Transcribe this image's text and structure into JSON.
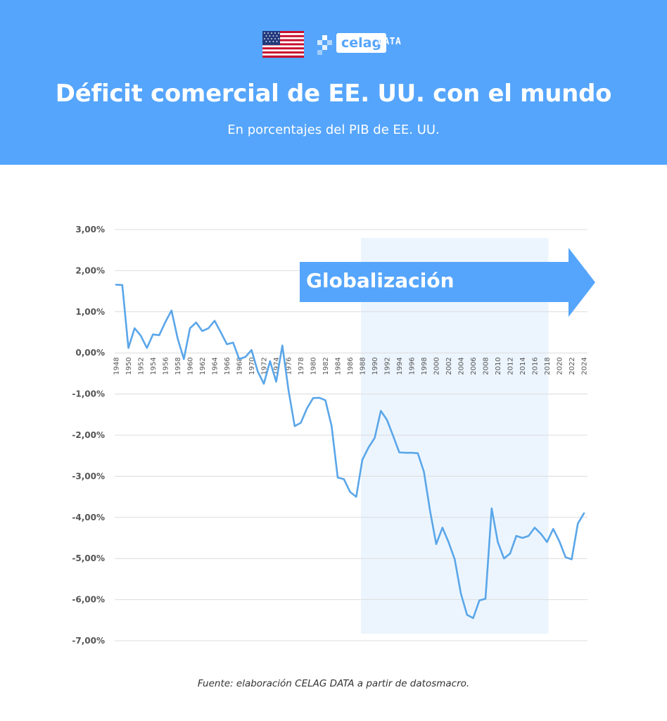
{
  "header": {
    "title": "Déficit comercial de EE. UU. con el mundo",
    "subtitle": "En porcentajes del PIB de EE. UU.",
    "logo_word": "celag",
    "logo_suffix": "DATA",
    "flag_icon": "us-flag-icon"
  },
  "colors": {
    "header_bg": "#55a5fc",
    "line": "#5aa6e9",
    "band": "#ecf5fe",
    "arrow": "#55a5fc"
  },
  "chart_data": {
    "type": "line",
    "title": "Déficit comercial de EE. UU. con el mundo",
    "subtitle": "En porcentajes del PIB de EE. UU.",
    "xlabel": "",
    "ylabel": "",
    "ylim": [
      -7,
      3
    ],
    "xlim": [
      1948,
      2024
    ],
    "grid": true,
    "y_ticks": [
      {
        "value": 3,
        "label": "3,00%"
      },
      {
        "value": 2,
        "label": "2,00%"
      },
      {
        "value": 1,
        "label": "1,00%"
      },
      {
        "value": 0,
        "label": "0,00%"
      },
      {
        "value": -1,
        "label": "-1,00%"
      },
      {
        "value": -2,
        "label": "-2,00%"
      },
      {
        "value": -3,
        "label": "-3,00%"
      },
      {
        "value": -4,
        "label": "-4,00%"
      },
      {
        "value": -5,
        "label": "-5,00%"
      },
      {
        "value": -6,
        "label": "-6,00%"
      },
      {
        "value": -7,
        "label": "-7,00%"
      }
    ],
    "x_ticks": [
      "1948",
      "1950",
      "1952",
      "1954",
      "1956",
      "1958",
      "1960",
      "1962",
      "1964",
      "1966",
      "1968",
      "1970",
      "1972",
      "1974",
      "1976",
      "1978",
      "1980",
      "1982",
      "1984",
      "1986",
      "1988",
      "1990",
      "1992",
      "1994",
      "1996",
      "1998",
      "2000",
      "2002",
      "2004",
      "2006",
      "2008",
      "2010",
      "2012",
      "2014",
      "2016",
      "2018",
      "2020",
      "2022",
      "2024"
    ],
    "x": [
      1948,
      1949,
      1950,
      1951,
      1952,
      1953,
      1954,
      1955,
      1956,
      1957,
      1958,
      1959,
      1960,
      1961,
      1962,
      1963,
      1964,
      1965,
      1966,
      1967,
      1968,
      1969,
      1970,
      1971,
      1972,
      1973,
      1974,
      1975,
      1976,
      1977,
      1978,
      1979,
      1980,
      1981,
      1982,
      1983,
      1984,
      1985,
      1986,
      1987,
      1988,
      1989,
      1990,
      1991,
      1992,
      1993,
      1994,
      1995,
      1996,
      1997,
      1998,
      1999,
      2000,
      2001,
      2002,
      2003,
      2004,
      2005,
      2006,
      2007,
      2008,
      2009,
      2010,
      2011,
      2012,
      2013,
      2014,
      2015,
      2016,
      2017,
      2018,
      2019,
      2020,
      2021,
      2022,
      2023,
      2024
    ],
    "values": [
      1.66,
      1.65,
      0.12,
      0.6,
      0.42,
      0.12,
      0.45,
      0.43,
      0.75,
      1.03,
      0.35,
      -0.15,
      0.6,
      0.74,
      0.53,
      0.6,
      0.78,
      0.5,
      0.21,
      0.25,
      -0.15,
      -0.1,
      0.07,
      -0.45,
      -0.75,
      -0.2,
      -0.7,
      0.18,
      -0.9,
      -1.78,
      -1.7,
      -1.35,
      -1.1,
      -1.09,
      -1.15,
      -1.78,
      -3.03,
      -3.07,
      -3.38,
      -3.5,
      -2.6,
      -2.3,
      -2.07,
      -1.41,
      -1.63,
      -2.02,
      -2.42,
      -2.43,
      -2.43,
      -2.44,
      -2.89,
      -3.85,
      -4.65,
      -4.25,
      -4.6,
      -5.02,
      -5.85,
      -6.37,
      -6.45,
      -6.02,
      -5.98,
      -3.78,
      -4.6,
      -5.0,
      -4.88,
      -4.45,
      -4.5,
      -4.45,
      -4.25,
      -4.4,
      -4.6,
      -4.28,
      -4.58,
      -4.97,
      -5.02,
      -4.15,
      -3.9
    ]
  },
  "annotation": {
    "label": "Globalización",
    "band_start": 1988,
    "band_end": 2018
  },
  "source": "Fuente: elaboración CELAG DATA a partir de datosmacro."
}
